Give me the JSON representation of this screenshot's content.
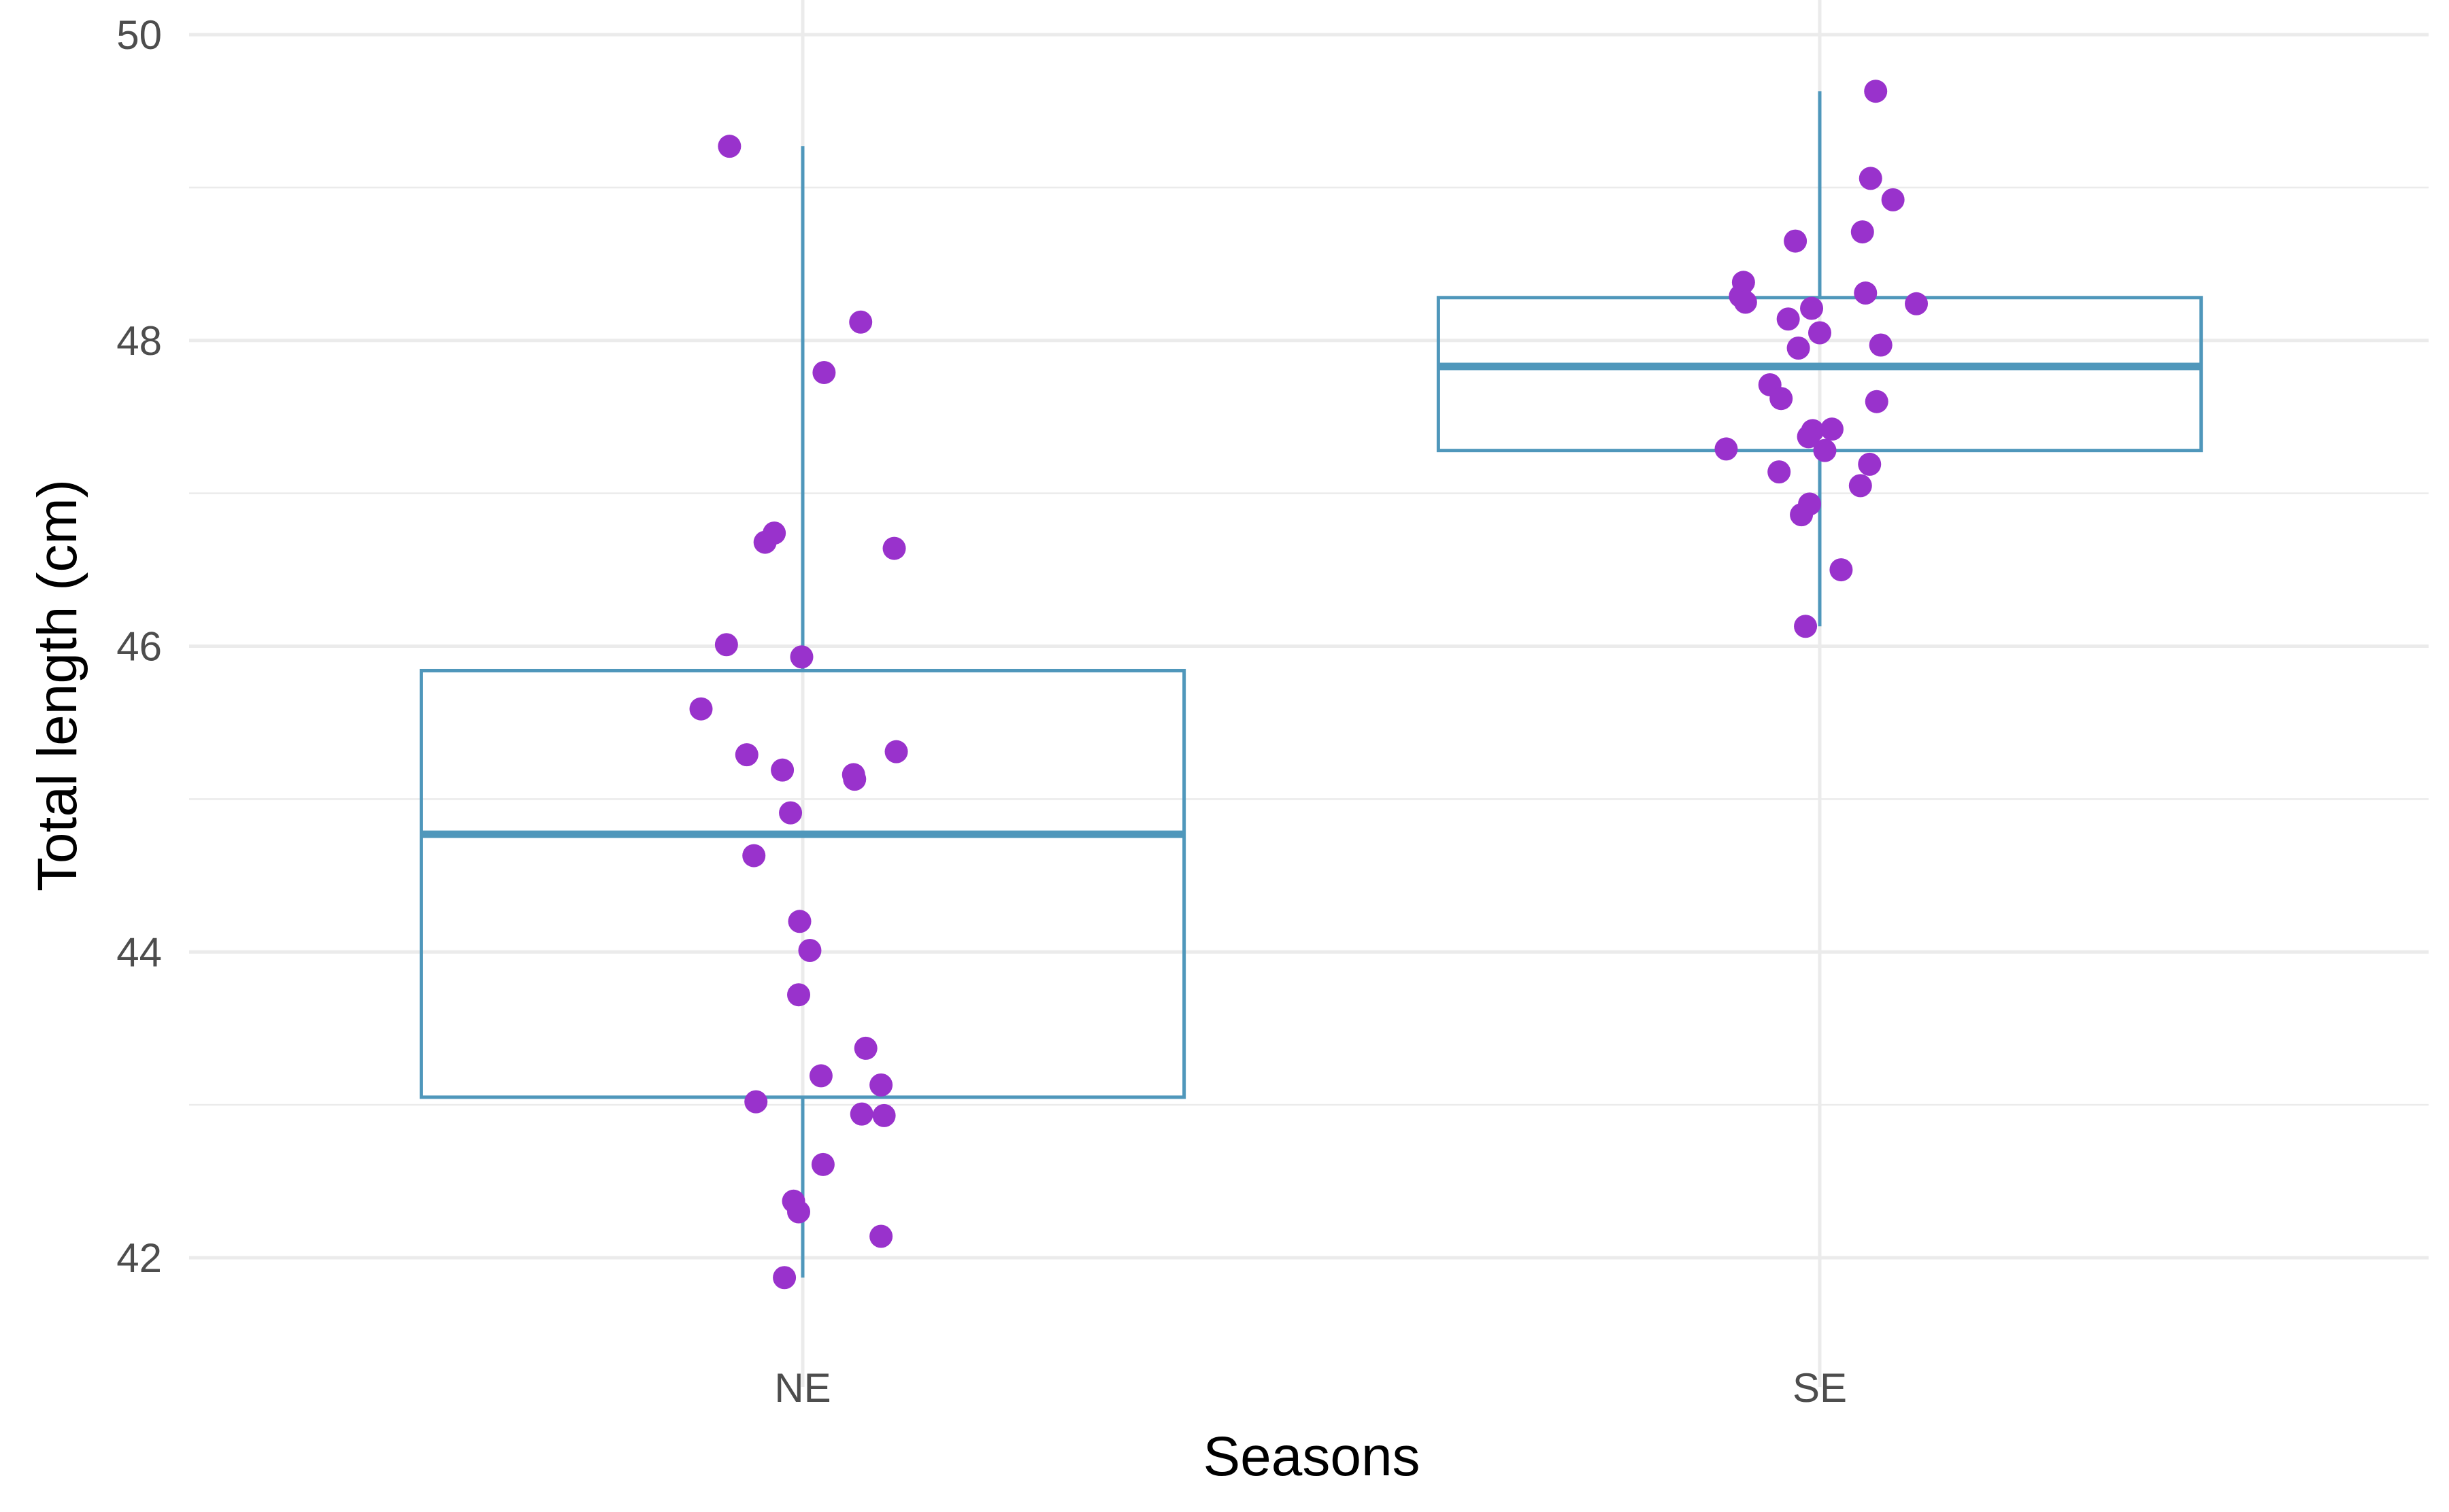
{
  "chart_data": {
    "type": "box",
    "xlabel": "Seasons",
    "ylabel": "Total length (cm)",
    "categories": [
      "NE",
      "SE"
    ],
    "ylim": [
      41.6,
      50.2
    ],
    "yticks": [
      42,
      44,
      46,
      48,
      50
    ],
    "grid": true,
    "colors": {
      "box": "#4f97bb",
      "point": "#9932cc",
      "grid": "#ebebeb"
    },
    "boxes": [
      {
        "category": "NE",
        "min": 41.87,
        "q1": 43.05,
        "median": 44.77,
        "q3": 45.84,
        "max": 49.27
      },
      {
        "category": "SE",
        "min": 46.13,
        "q1": 47.28,
        "median": 47.83,
        "q3": 48.28,
        "max": 49.63
      }
    ],
    "points": [
      {
        "category": "NE",
        "jitter": -0.072,
        "y": 49.27
      },
      {
        "category": "NE",
        "jitter": 0.057,
        "y": 48.12
      },
      {
        "category": "NE",
        "jitter": 0.021,
        "y": 47.79
      },
      {
        "category": "NE",
        "jitter": -0.028,
        "y": 46.74
      },
      {
        "category": "NE",
        "jitter": -0.037,
        "y": 46.68
      },
      {
        "category": "NE",
        "jitter": 0.09,
        "y": 46.64
      },
      {
        "category": "NE",
        "jitter": -0.075,
        "y": 46.01
      },
      {
        "category": "NE",
        "jitter": -0.001,
        "y": 45.93
      },
      {
        "category": "NE",
        "jitter": -0.1,
        "y": 45.59
      },
      {
        "category": "NE",
        "jitter": 0.092,
        "y": 45.31
      },
      {
        "category": "NE",
        "jitter": -0.055,
        "y": 45.29
      },
      {
        "category": "NE",
        "jitter": -0.02,
        "y": 45.19
      },
      {
        "category": "NE",
        "jitter": 0.05,
        "y": 45.16
      },
      {
        "category": "NE",
        "jitter": 0.051,
        "y": 45.13
      },
      {
        "category": "NE",
        "jitter": -0.012,
        "y": 44.91
      },
      {
        "category": "NE",
        "jitter": -0.048,
        "y": 44.63
      },
      {
        "category": "NE",
        "jitter": -0.003,
        "y": 44.2
      },
      {
        "category": "NE",
        "jitter": 0.007,
        "y": 44.01
      },
      {
        "category": "NE",
        "jitter": -0.004,
        "y": 43.72
      },
      {
        "category": "NE",
        "jitter": 0.062,
        "y": 43.37
      },
      {
        "category": "NE",
        "jitter": 0.018,
        "y": 43.19
      },
      {
        "category": "NE",
        "jitter": 0.077,
        "y": 43.13
      },
      {
        "category": "NE",
        "jitter": -0.046,
        "y": 43.02
      },
      {
        "category": "NE",
        "jitter": 0.058,
        "y": 42.94
      },
      {
        "category": "NE",
        "jitter": 0.08,
        "y": 42.93
      },
      {
        "category": "NE",
        "jitter": 0.02,
        "y": 42.61
      },
      {
        "category": "NE",
        "jitter": -0.009,
        "y": 42.37
      },
      {
        "category": "NE",
        "jitter": -0.004,
        "y": 42.3
      },
      {
        "category": "NE",
        "jitter": 0.077,
        "y": 42.14
      },
      {
        "category": "NE",
        "jitter": -0.018,
        "y": 41.87
      },
      {
        "category": "SE",
        "jitter": 0.055,
        "y": 49.63
      },
      {
        "category": "SE",
        "jitter": 0.05,
        "y": 49.06
      },
      {
        "category": "SE",
        "jitter": 0.072,
        "y": 48.92
      },
      {
        "category": "SE",
        "jitter": 0.042,
        "y": 48.71
      },
      {
        "category": "SE",
        "jitter": -0.024,
        "y": 48.65
      },
      {
        "category": "SE",
        "jitter": -0.075,
        "y": 48.38
      },
      {
        "category": "SE",
        "jitter": 0.045,
        "y": 48.31
      },
      {
        "category": "SE",
        "jitter": -0.078,
        "y": 48.29
      },
      {
        "category": "SE",
        "jitter": -0.073,
        "y": 48.25
      },
      {
        "category": "SE",
        "jitter": 0.095,
        "y": 48.24
      },
      {
        "category": "SE",
        "jitter": -0.008,
        "y": 48.21
      },
      {
        "category": "SE",
        "jitter": -0.031,
        "y": 48.14
      },
      {
        "category": "SE",
        "jitter": 0.0,
        "y": 48.05
      },
      {
        "category": "SE",
        "jitter": 0.06,
        "y": 47.97
      },
      {
        "category": "SE",
        "jitter": -0.021,
        "y": 47.95
      },
      {
        "category": "SE",
        "jitter": -0.049,
        "y": 47.71
      },
      {
        "category": "SE",
        "jitter": -0.038,
        "y": 47.62
      },
      {
        "category": "SE",
        "jitter": 0.056,
        "y": 47.6
      },
      {
        "category": "SE",
        "jitter": 0.012,
        "y": 47.42
      },
      {
        "category": "SE",
        "jitter": -0.007,
        "y": 47.41
      },
      {
        "category": "SE",
        "jitter": -0.011,
        "y": 47.37
      },
      {
        "category": "SE",
        "jitter": 0.005,
        "y": 47.28
      },
      {
        "category": "SE",
        "jitter": -0.092,
        "y": 47.29
      },
      {
        "category": "SE",
        "jitter": 0.049,
        "y": 47.19
      },
      {
        "category": "SE",
        "jitter": -0.04,
        "y": 47.14
      },
      {
        "category": "SE",
        "jitter": 0.04,
        "y": 47.05
      },
      {
        "category": "SE",
        "jitter": -0.01,
        "y": 46.93
      },
      {
        "category": "SE",
        "jitter": -0.018,
        "y": 46.86
      },
      {
        "category": "SE",
        "jitter": 0.021,
        "y": 46.5
      },
      {
        "category": "SE",
        "jitter": -0.014,
        "y": 46.13
      }
    ]
  }
}
